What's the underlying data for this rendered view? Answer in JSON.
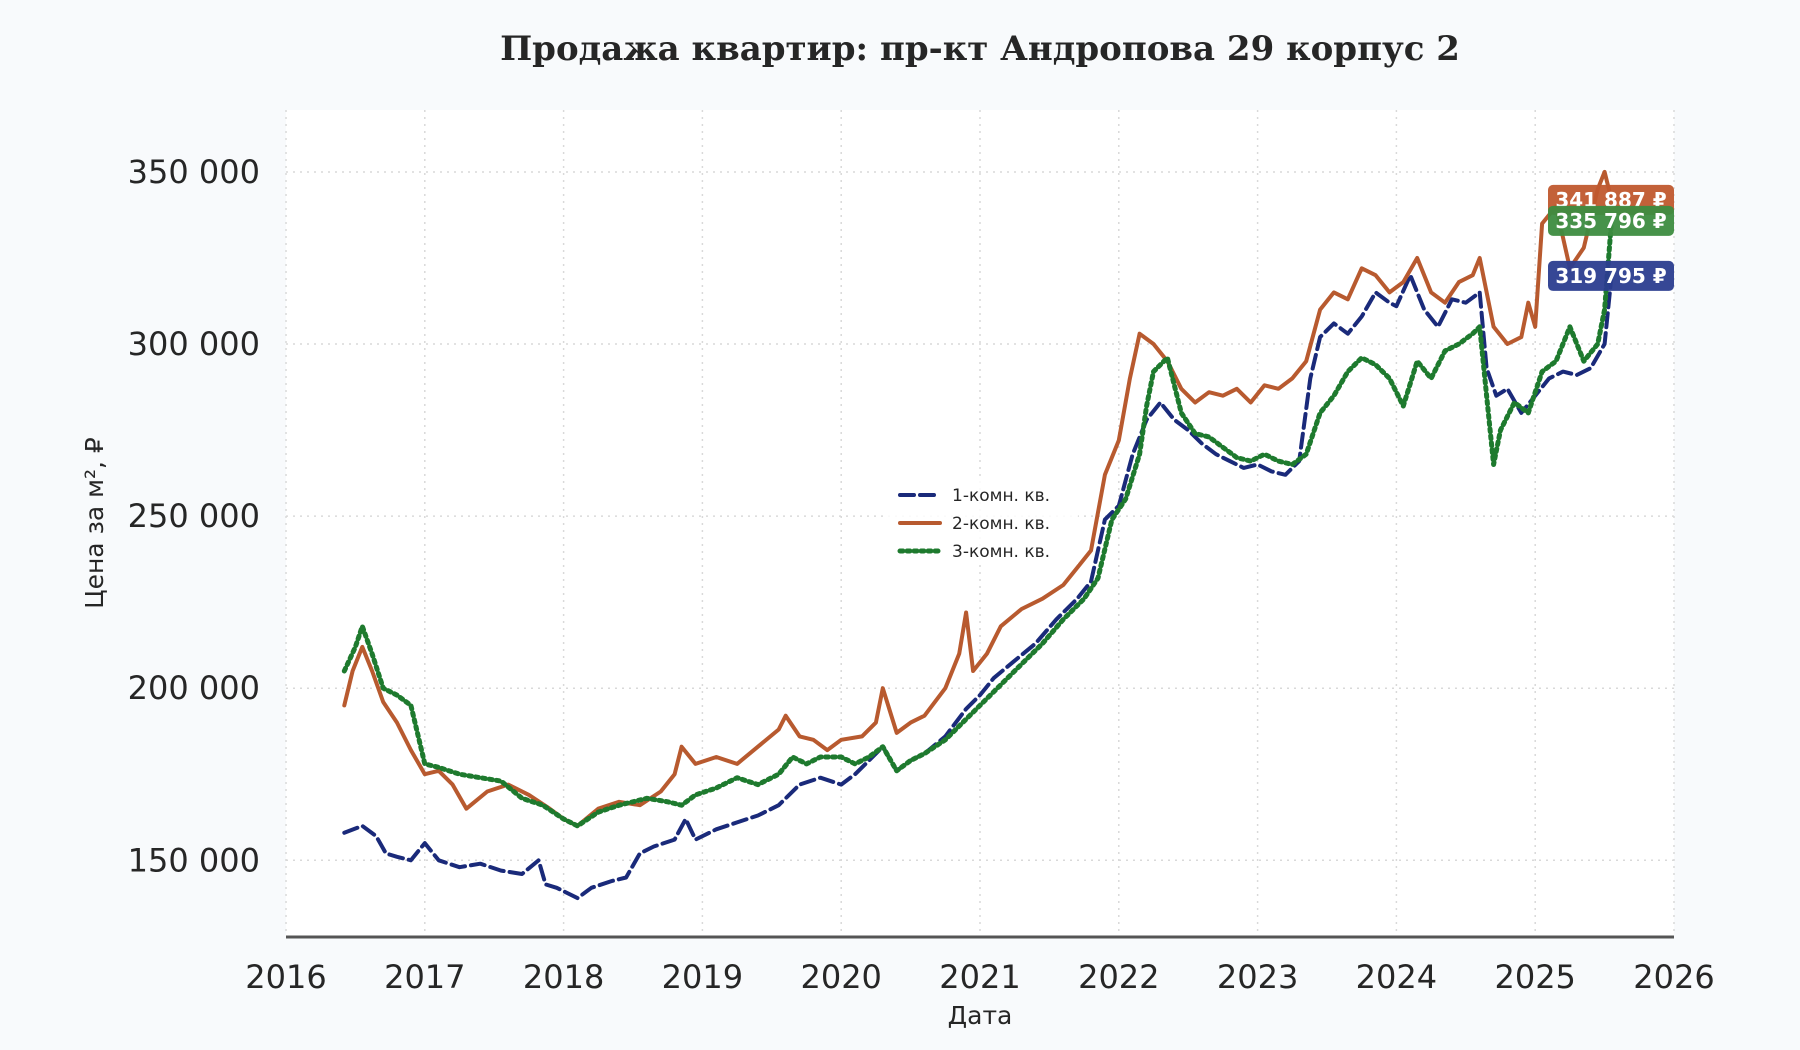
{
  "chart_data": {
    "type": "line",
    "title": "Продажа квартир: пр-кт Андропова 29 корпус 2",
    "xlabel": "Дата",
    "ylabel": "Цена за м², ₽",
    "xlim": [
      2016,
      2026
    ],
    "ylim": [
      128000,
      368000
    ],
    "x_ticks": [
      "2016",
      "2017",
      "2018",
      "2019",
      "2020",
      "2021",
      "2022",
      "2023",
      "2024",
      "2025",
      "2026"
    ],
    "y_ticks": [
      "150 000",
      "200 000",
      "250 000",
      "300 000",
      "350 000"
    ],
    "y_tick_values": [
      150000,
      200000,
      250000,
      300000,
      350000
    ],
    "grid": true,
    "legend_position": "center",
    "series": [
      {
        "name": "1-комн. кв.",
        "color": "#1a2a7a",
        "style": "dashed",
        "badge": "319 795 ₽",
        "badge_color": "#2b3d8f",
        "x": [
          2016.42,
          2016.55,
          2016.65,
          2016.72,
          2016.8,
          2016.9,
          2017.0,
          2017.1,
          2017.25,
          2017.4,
          2017.55,
          2017.7,
          2017.82,
          2017.87,
          2017.95,
          2018.1,
          2018.2,
          2018.35,
          2018.45,
          2018.55,
          2018.65,
          2018.8,
          2018.88,
          2018.95,
          2019.1,
          2019.25,
          2019.4,
          2019.55,
          2019.7,
          2019.85,
          2020.0,
          2020.1,
          2020.2,
          2020.3,
          2020.4,
          2020.5,
          2020.6,
          2020.75,
          2020.9,
          2021.0,
          2021.1,
          2021.25,
          2021.4,
          2021.55,
          2021.7,
          2021.8,
          2021.9,
          2022.0,
          2022.1,
          2022.2,
          2022.3,
          2022.4,
          2022.5,
          2022.6,
          2022.7,
          2022.8,
          2022.9,
          2023.0,
          2023.1,
          2023.2,
          2023.3,
          2023.38,
          2023.45,
          2023.55,
          2023.65,
          2023.75,
          2023.85,
          2023.95,
          2024.0,
          2024.1,
          2024.2,
          2024.3,
          2024.4,
          2024.5,
          2024.6,
          2024.65,
          2024.72,
          2024.8,
          2024.9,
          2025.0,
          2025.1,
          2025.2,
          2025.3,
          2025.4,
          2025.5,
          2025.55
        ],
        "y": [
          158000,
          160000,
          157000,
          152000,
          151000,
          150000,
          155000,
          150000,
          148000,
          149000,
          147000,
          146000,
          150000,
          143000,
          142000,
          139000,
          142000,
          144000,
          145000,
          152000,
          154000,
          156000,
          162000,
          156000,
          159000,
          161000,
          163000,
          166000,
          172000,
          174000,
          172000,
          175000,
          179000,
          183000,
          176000,
          179000,
          181000,
          186000,
          194000,
          198000,
          203000,
          208000,
          213000,
          220000,
          226000,
          231000,
          249000,
          253000,
          268000,
          278000,
          283000,
          278000,
          275000,
          271000,
          268000,
          266000,
          264000,
          265000,
          263000,
          262000,
          266000,
          290000,
          302000,
          306000,
          303000,
          308000,
          315000,
          312000,
          311000,
          320000,
          310000,
          305000,
          313000,
          312000,
          315000,
          293000,
          285000,
          287000,
          280000,
          285000,
          290000,
          292000,
          291000,
          293000,
          300000,
          319795
        ]
      },
      {
        "name": "2-комн. кв.",
        "color": "#b85a2f",
        "style": "solid",
        "badge": "341 887 ₽",
        "badge_color": "#c0582e",
        "x": [
          2016.42,
          2016.48,
          2016.55,
          2016.62,
          2016.7,
          2016.8,
          2016.9,
          2017.0,
          2017.1,
          2017.2,
          2017.3,
          2017.45,
          2017.6,
          2017.75,
          2017.9,
          2018.0,
          2018.1,
          2018.25,
          2018.4,
          2018.55,
          2018.7,
          2018.8,
          2018.85,
          2018.95,
          2019.1,
          2019.25,
          2019.4,
          2019.55,
          2019.6,
          2019.7,
          2019.8,
          2019.9,
          2020.0,
          2020.15,
          2020.25,
          2020.3,
          2020.4,
          2020.5,
          2020.6,
          2020.75,
          2020.85,
          2020.9,
          2020.95,
          2021.05,
          2021.15,
          2021.3,
          2021.45,
          2021.6,
          2021.7,
          2021.8,
          2021.9,
          2022.0,
          2022.08,
          2022.15,
          2022.25,
          2022.35,
          2022.45,
          2022.55,
          2022.65,
          2022.75,
          2022.85,
          2022.95,
          2023.05,
          2023.15,
          2023.25,
          2023.35,
          2023.45,
          2023.55,
          2023.65,
          2023.75,
          2023.85,
          2023.95,
          2024.05,
          2024.15,
          2024.25,
          2024.35,
          2024.45,
          2024.55,
          2024.6,
          2024.7,
          2024.8,
          2024.9,
          2024.95,
          2025.0,
          2025.05,
          2025.15,
          2025.25,
          2025.35,
          2025.45,
          2025.5,
          2025.55
        ],
        "y": [
          195000,
          205000,
          212000,
          205000,
          196000,
          190000,
          182000,
          175000,
          176000,
          172000,
          165000,
          170000,
          172000,
          169000,
          165000,
          162000,
          160000,
          165000,
          167000,
          166000,
          170000,
          175000,
          183000,
          178000,
          180000,
          178000,
          183000,
          188000,
          192000,
          186000,
          185000,
          182000,
          185000,
          186000,
          190000,
          200000,
          187000,
          190000,
          192000,
          200000,
          210000,
          222000,
          205000,
          210000,
          218000,
          223000,
          226000,
          230000,
          235000,
          240000,
          262000,
          272000,
          290000,
          303000,
          300000,
          295000,
          287000,
          283000,
          286000,
          285000,
          287000,
          283000,
          288000,
          287000,
          290000,
          295000,
          310000,
          315000,
          313000,
          322000,
          320000,
          315000,
          318000,
          325000,
          315000,
          312000,
          318000,
          320000,
          325000,
          305000,
          300000,
          302000,
          312000,
          305000,
          335000,
          340000,
          322000,
          328000,
          345000,
          350000,
          341887
        ]
      },
      {
        "name": "3-комн. кв.",
        "color": "#1e7a2e",
        "style": "dotted",
        "badge": "335 796 ₽",
        "badge_color": "#3d8c40",
        "x": [
          2016.42,
          2016.5,
          2016.55,
          2016.62,
          2016.7,
          2016.8,
          2016.9,
          2017.0,
          2017.1,
          2017.25,
          2017.4,
          2017.55,
          2017.7,
          2017.85,
          2018.0,
          2018.1,
          2018.25,
          2018.4,
          2018.5,
          2018.6,
          2018.75,
          2018.85,
          2018.95,
          2019.1,
          2019.25,
          2019.4,
          2019.55,
          2019.65,
          2019.75,
          2019.85,
          2020.0,
          2020.1,
          2020.2,
          2020.3,
          2020.4,
          2020.5,
          2020.6,
          2020.75,
          2020.9,
          2021.0,
          2021.15,
          2021.3,
          2021.45,
          2021.6,
          2021.75,
          2021.85,
          2021.95,
          2022.05,
          2022.15,
          2022.2,
          2022.25,
          2022.35,
          2022.45,
          2022.55,
          2022.65,
          2022.75,
          2022.85,
          2022.95,
          2023.05,
          2023.15,
          2023.25,
          2023.35,
          2023.45,
          2023.55,
          2023.65,
          2023.75,
          2023.85,
          2023.95,
          2024.05,
          2024.15,
          2024.25,
          2024.35,
          2024.45,
          2024.55,
          2024.6,
          2024.65,
          2024.7,
          2024.75,
          2024.85,
          2024.95,
          2025.05,
          2025.15,
          2025.25,
          2025.35,
          2025.45,
          2025.5,
          2025.55
        ],
        "y": [
          205000,
          212000,
          218000,
          210000,
          200000,
          198000,
          195000,
          178000,
          177000,
          175000,
          174000,
          173000,
          168000,
          166000,
          162000,
          160000,
          164000,
          166000,
          167000,
          168000,
          167000,
          166000,
          169000,
          171000,
          174000,
          172000,
          175000,
          180000,
          178000,
          180000,
          180000,
          178000,
          180000,
          183000,
          176000,
          179000,
          181000,
          185000,
          191000,
          195000,
          201000,
          207000,
          213000,
          220000,
          226000,
          232000,
          249000,
          255000,
          268000,
          282000,
          292000,
          296000,
          280000,
          274000,
          273000,
          270000,
          267000,
          266000,
          268000,
          266000,
          265000,
          268000,
          280000,
          285000,
          292000,
          296000,
          294000,
          290000,
          282000,
          295000,
          290000,
          298000,
          300000,
          303000,
          305000,
          285000,
          265000,
          275000,
          283000,
          280000,
          292000,
          295000,
          305000,
          295000,
          300000,
          310000,
          335796
        ]
      }
    ]
  }
}
